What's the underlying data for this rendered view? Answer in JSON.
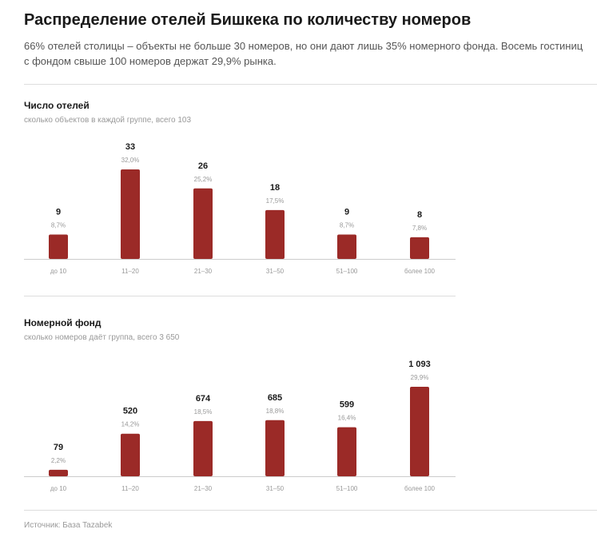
{
  "header": {
    "title": "Распределение отелей Бишкека по количеству номеров",
    "subtitle": "66% отелей столицы – объекты не больше 30 номеров, но они дают лишь 35% номерного фонда. Восемь гостиниц с фондом свыше 100 номеров держат 29,9% рынка."
  },
  "chart_data": [
    {
      "type": "bar",
      "title": "Число отелей",
      "subtitle": "сколько объектов в каждой группе, всего 103",
      "categories": [
        "до 10",
        "11–20",
        "21–30",
        "31–50",
        "51–100",
        "более 100"
      ],
      "values": [
        9,
        33,
        26,
        18,
        9,
        8
      ],
      "value_labels": [
        "9",
        "33",
        "26",
        "18",
        "9",
        "8"
      ],
      "percent_labels": [
        "8,7%",
        "32,0%",
        "25,2%",
        "17,5%",
        "8,7%",
        "7,8%"
      ],
      "color": "#9b2a27",
      "ylim": [
        0,
        33
      ],
      "grid": false
    },
    {
      "type": "bar",
      "title": "Номерной фонд",
      "subtitle": "сколько номеров даёт группа, всего 3 650",
      "categories": [
        "до 10",
        "11–20",
        "21–30",
        "31–50",
        "51–100",
        "более 100"
      ],
      "values": [
        79,
        520,
        674,
        685,
        599,
        1093
      ],
      "value_labels": [
        "79",
        "520",
        "674",
        "685",
        "599",
        "1 093"
      ],
      "percent_labels": [
        "2,2%",
        "14,2%",
        "18,5%",
        "18,8%",
        "16,4%",
        "29,9%"
      ],
      "color": "#9b2a27",
      "ylim": [
        0,
        1093
      ],
      "grid": false
    }
  ],
  "footer": {
    "source": "Источник: База Tazabek"
  }
}
